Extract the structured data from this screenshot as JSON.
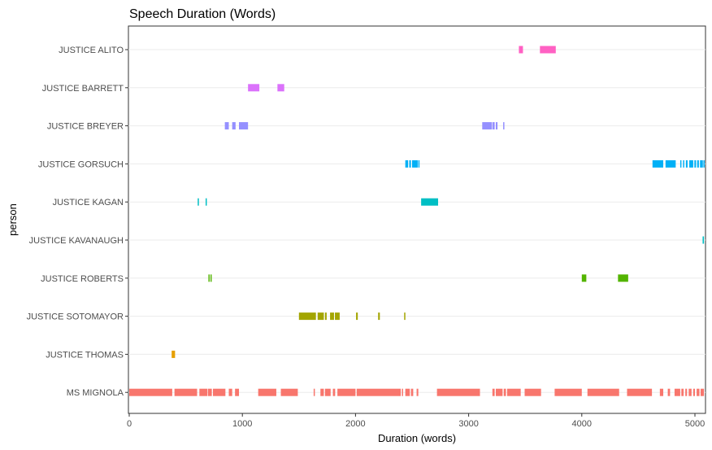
{
  "chart_data": {
    "type": "timeline",
    "title": "Speech Duration (Words)",
    "xlabel": "Duration (words)",
    "ylabel": "person",
    "xlim": [
      0,
      5080
    ],
    "x_ticks": [
      0,
      1000,
      2000,
      3000,
      4000,
      5000
    ],
    "grid": true,
    "legend": "none",
    "categories": [
      "JUSTICE ALITO",
      "JUSTICE BARRETT",
      "JUSTICE BREYER",
      "JUSTICE GORSUCH",
      "JUSTICE KAGAN",
      "JUSTICE KAVANAUGH",
      "JUSTICE ROBERTS",
      "JUSTICE SOTOMAYOR",
      "JUSTICE THOMAS",
      "MS MIGNOLA"
    ],
    "series": [
      {
        "person": "JUSTICE ALITO",
        "color": "#FF61C3",
        "segments": [
          [
            3444,
            3480
          ],
          [
            3630,
            3770
          ]
        ]
      },
      {
        "person": "JUSTICE BARRETT",
        "color": "#DB72FB",
        "segments": [
          [
            1050,
            1150
          ],
          [
            1310,
            1370
          ]
        ]
      },
      {
        "person": "JUSTICE BREYER",
        "color": "#9590FF",
        "segments": [
          [
            845,
            880
          ],
          [
            910,
            940
          ],
          [
            970,
            1050
          ],
          [
            3120,
            3205
          ],
          [
            3210,
            3230
          ],
          [
            3240,
            3255
          ],
          [
            3305,
            3315
          ]
        ]
      },
      {
        "person": "JUSTICE GORSUCH",
        "color": "#00B0F6",
        "segments": [
          [
            2440,
            2465
          ],
          [
            2475,
            2490
          ],
          [
            2500,
            2550
          ],
          [
            2555,
            2565
          ],
          [
            4625,
            4720
          ],
          [
            4740,
            4830
          ],
          [
            4870,
            4880
          ],
          [
            4895,
            4905
          ],
          [
            4920,
            4935
          ],
          [
            4950,
            4985
          ],
          [
            4995,
            5010
          ],
          [
            5020,
            5035
          ],
          [
            5045,
            5070
          ],
          [
            5075,
            5080
          ]
        ]
      },
      {
        "person": "JUSTICE KAGAN",
        "color": "#00BFC4",
        "segments": [
          [
            605,
            615
          ],
          [
            675,
            685
          ],
          [
            2580,
            2730
          ]
        ]
      },
      {
        "person": "JUSTICE KAVANAUGH",
        "color": "#00BFC4",
        "segments": [
          [
            5068,
            5080
          ]
        ]
      },
      {
        "person": "JUSTICE ROBERTS",
        "color": "#53B400",
        "segments": [
          [
            700,
            710
          ],
          [
            718,
            728
          ],
          [
            4000,
            4040
          ],
          [
            4320,
            4410
          ]
        ]
      },
      {
        "person": "JUSTICE SOTOMAYOR",
        "color": "#A3A500",
        "segments": [
          [
            1500,
            1650
          ],
          [
            1665,
            1720
          ],
          [
            1730,
            1745
          ],
          [
            1775,
            1810
          ],
          [
            1818,
            1860
          ],
          [
            2005,
            2020
          ],
          [
            2200,
            2215
          ],
          [
            2430,
            2440
          ]
        ]
      },
      {
        "person": "JUSTICE THOMAS",
        "color": "#E69F00",
        "segments": [
          [
            375,
            405
          ]
        ]
      },
      {
        "person": "MS MIGNOLA",
        "color": "#F8766D",
        "segments": [
          [
            0,
            380
          ],
          [
            400,
            600
          ],
          [
            620,
            690
          ],
          [
            695,
            730
          ],
          [
            740,
            850
          ],
          [
            880,
            910
          ],
          [
            935,
            970
          ],
          [
            1140,
            1300
          ],
          [
            1340,
            1490
          ],
          [
            1630,
            1640
          ],
          [
            1690,
            1720
          ],
          [
            1730,
            1780
          ],
          [
            1800,
            1820
          ],
          [
            1840,
            2000
          ],
          [
            2010,
            2400
          ],
          [
            2410,
            2420
          ],
          [
            2440,
            2480
          ],
          [
            2490,
            2510
          ],
          [
            2540,
            2555
          ],
          [
            2720,
            3100
          ],
          [
            3210,
            3230
          ],
          [
            3240,
            3300
          ],
          [
            3310,
            3330
          ],
          [
            3340,
            3460
          ],
          [
            3495,
            3640
          ],
          [
            3760,
            4000
          ],
          [
            4050,
            4330
          ],
          [
            4400,
            4620
          ],
          [
            4690,
            4720
          ],
          [
            4760,
            4780
          ],
          [
            4820,
            4870
          ],
          [
            4880,
            4900
          ],
          [
            4915,
            4930
          ],
          [
            4945,
            4970
          ],
          [
            4985,
            5000
          ],
          [
            5015,
            5040
          ],
          [
            5050,
            5080
          ]
        ]
      }
    ]
  }
}
